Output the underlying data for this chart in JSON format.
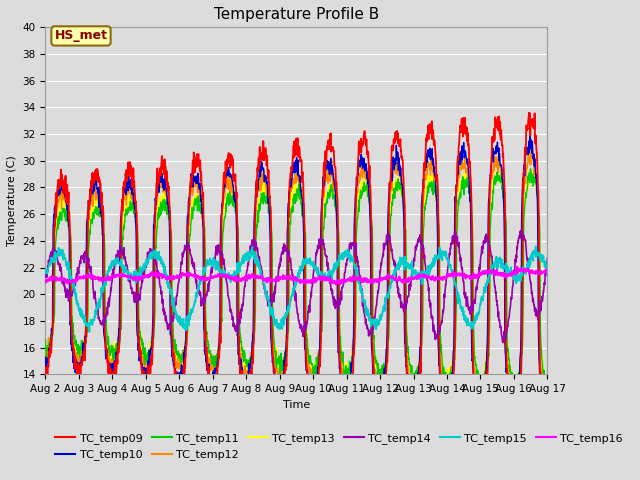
{
  "title": "Temperature Profile B",
  "xlabel": "Time",
  "ylabel": "Temperature (C)",
  "ylim": [
    14,
    40
  ],
  "background_color": "#dcdcdc",
  "plot_bg_color": "#dcdcdc",
  "annotation_text": "HS_met",
  "annotation_bbox_fc": "#ffffaa",
  "annotation_bbox_ec": "#8b6914",
  "series_colors": {
    "TC_temp09": "#ff0000",
    "TC_temp10": "#0000cc",
    "TC_temp11": "#00cc00",
    "TC_temp12": "#ff8800",
    "TC_temp13": "#ffff00",
    "TC_temp14": "#9900aa",
    "TC_temp15": "#00cccc",
    "TC_temp16": "#ff00ff"
  },
  "title_fontsize": 11,
  "axis_fontsize": 8,
  "tick_fontsize": 7.5
}
